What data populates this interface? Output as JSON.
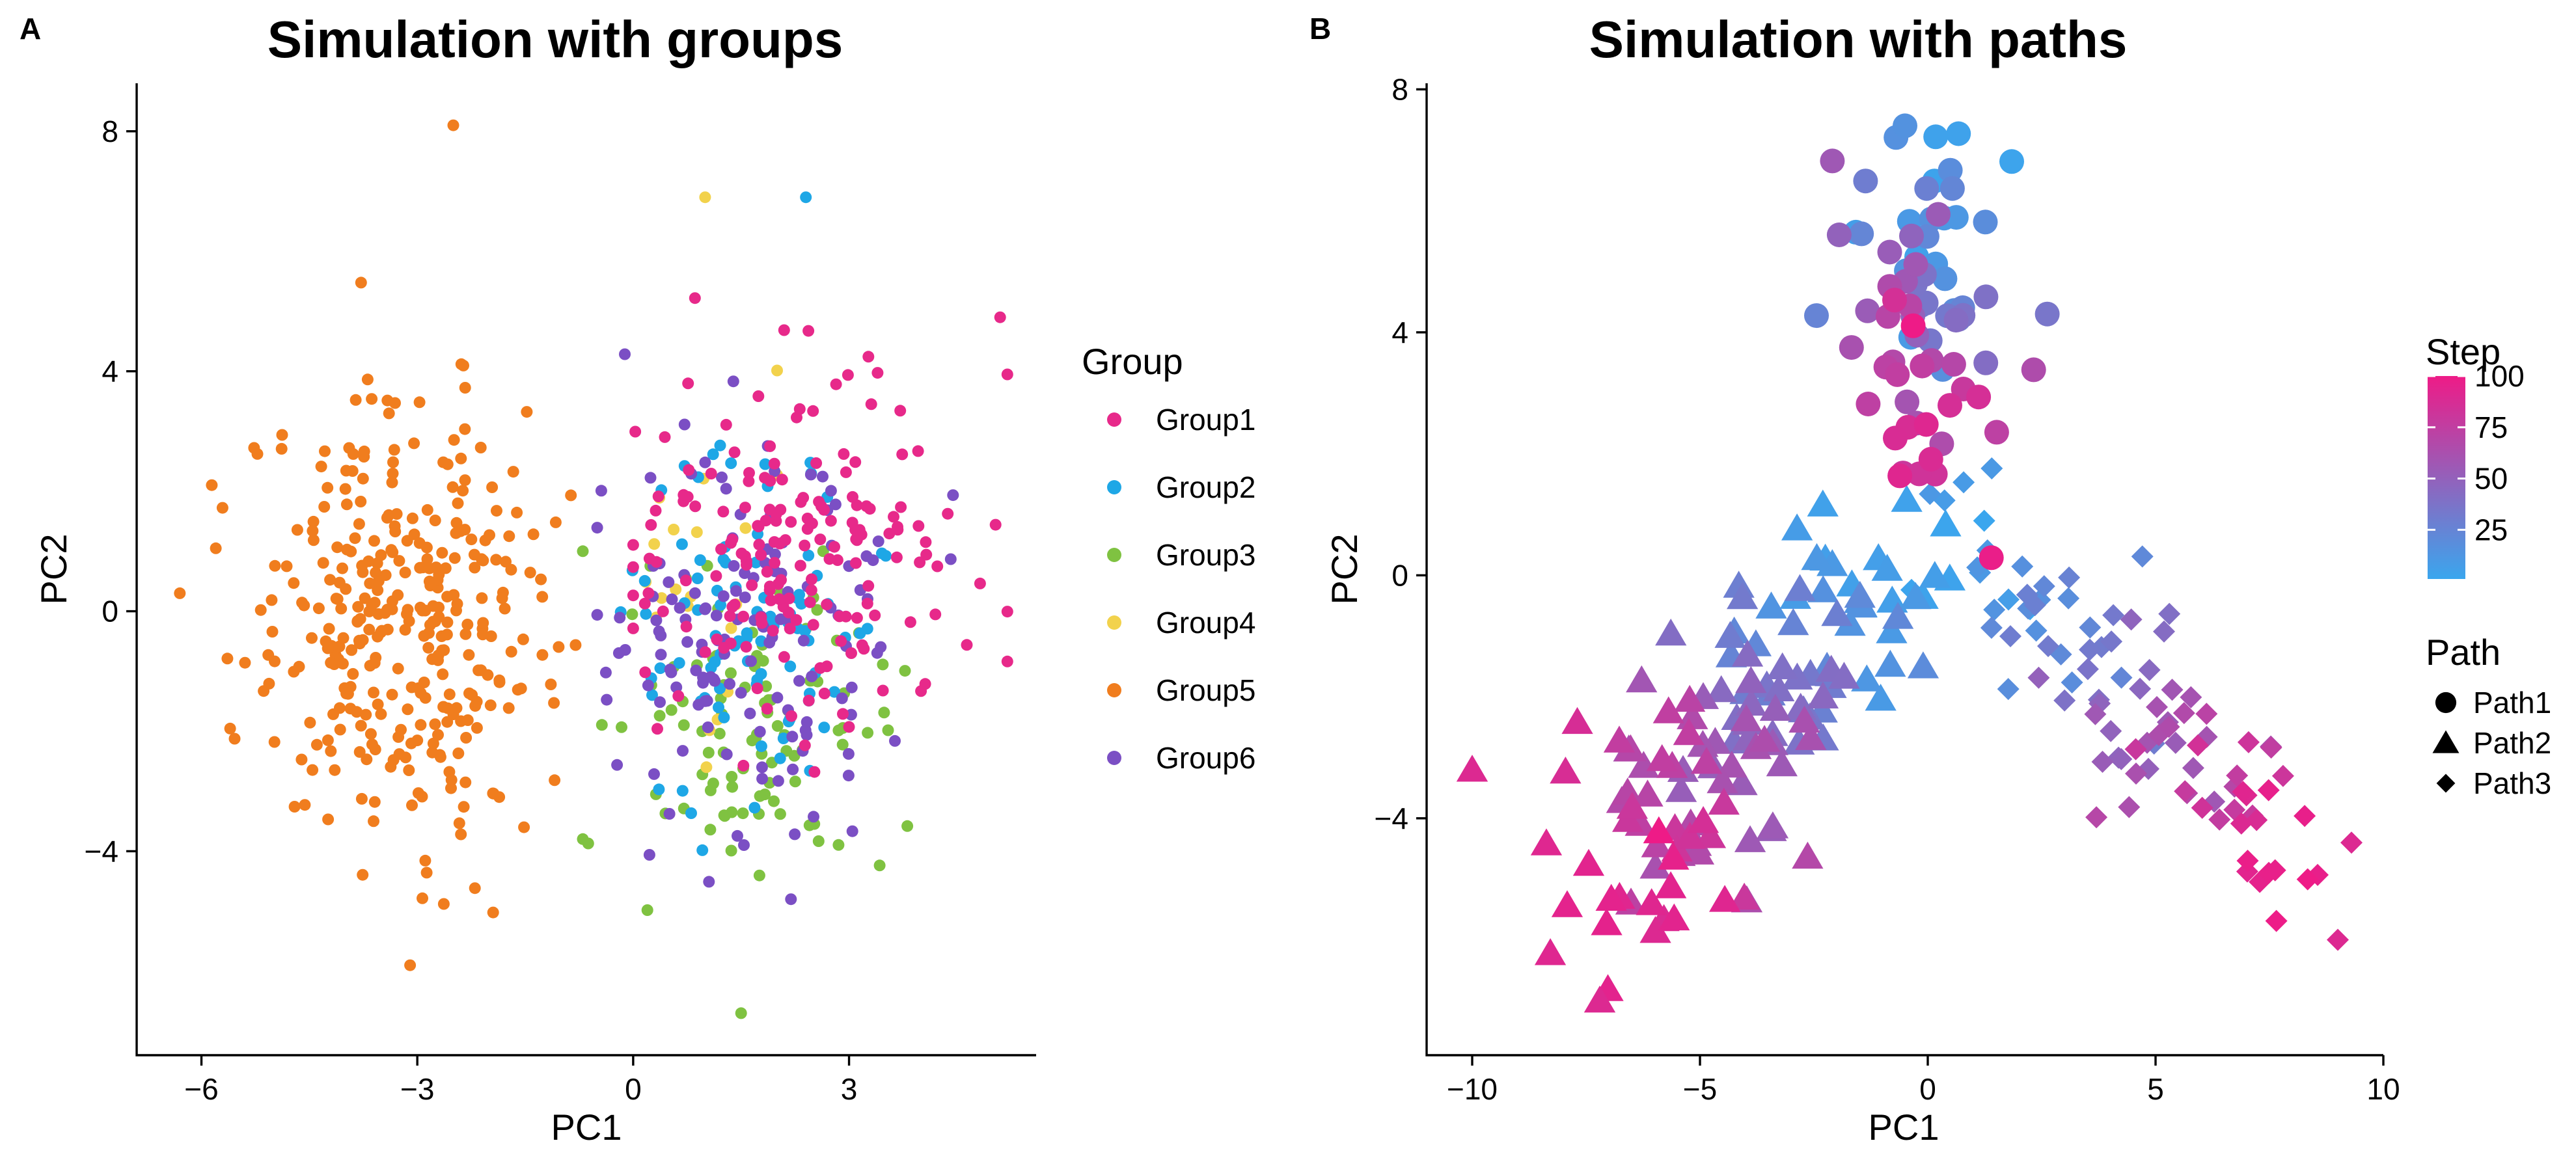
{
  "panels": {
    "a": {
      "tag": "A"
    },
    "b": {
      "tag": "B"
    }
  },
  "chart_data": [
    {
      "type": "scatter",
      "title": "Simulation with groups",
      "xlabel": "PC1",
      "ylabel": "PC2",
      "xlim": [
        -6.9,
        5.6
      ],
      "ylim": [
        -7.4,
        8.8
      ],
      "xticks": [
        -6,
        -3,
        0,
        3
      ],
      "xtick_labels": [
        "−6",
        "−3",
        "0",
        "3"
      ],
      "yticks": [
        -4,
        0,
        4,
        8
      ],
      "ytick_labels": [
        "−4",
        "0",
        "4",
        "8"
      ],
      "grid": false,
      "legend": {
        "title": "Group",
        "position": "right"
      },
      "series": [
        {
          "name": "Group1",
          "color": "#e7298a",
          "count": 180,
          "center": [
            2.1,
            0.9
          ],
          "spread": [
            1.1,
            1.5
          ],
          "range": [
            [
              0.0,
              5.2
            ],
            [
              -3.0,
              6.1
            ]
          ]
        },
        {
          "name": "Group2",
          "color": "#1ea7e6",
          "count": 90,
          "center": [
            1.6,
            -0.3
          ],
          "spread": [
            0.9,
            1.4
          ],
          "range": [
            [
              -0.6,
              4.6
            ],
            [
              -4.6,
              7.0
            ]
          ]
        },
        {
          "name": "Group3",
          "color": "#7fc241",
          "count": 100,
          "center": [
            1.5,
            -2.2
          ],
          "spread": [
            1.0,
            1.3
          ],
          "range": [
            [
              -0.7,
              4.5
            ],
            [
              -6.7,
              1.0
            ]
          ]
        },
        {
          "name": "Group4",
          "color": "#f2d24c",
          "count": 20,
          "center": [
            0.9,
            0.8
          ],
          "spread": [
            0.6,
            1.7
          ],
          "range": [
            [
              -1.0,
              2.0
            ],
            [
              -2.6,
              7.0
            ]
          ]
        },
        {
          "name": "Group5",
          "color": "#f07d1e",
          "count": 340,
          "center": [
            -3.2,
            -0.1
          ],
          "spread": [
            1.05,
            1.85
          ],
          "range": [
            [
              -6.3,
              -0.8
            ],
            [
              -5.9,
              8.1
            ]
          ]
        },
        {
          "name": "Group6",
          "color": "#7b4fc4",
          "count": 140,
          "center": [
            1.6,
            -0.6
          ],
          "spread": [
            1.2,
            1.6
          ],
          "range": [
            [
              -0.5,
              4.8
            ],
            [
              -4.8,
              5.4
            ]
          ]
        }
      ],
      "key_points": [
        {
          "x": -2.5,
          "y": 8.1,
          "series": "Group5"
        },
        {
          "x": -6.3,
          "y": 0.3,
          "series": "Group5"
        },
        {
          "x": -3.1,
          "y": -5.9,
          "series": "Group5"
        },
        {
          "x": 1.0,
          "y": 6.9,
          "series": "Group4"
        },
        {
          "x": 2.4,
          "y": 6.9,
          "series": "Group2"
        },
        {
          "x": 1.5,
          "y": -6.7,
          "series": "Group3"
        },
        {
          "x": 5.1,
          "y": 4.9,
          "series": "Group1"
        }
      ]
    },
    {
      "type": "scatter",
      "title": "Simulation with paths",
      "xlabel": "PC1",
      "ylabel": "PC2",
      "xlim": [
        -11.0,
        10.0
      ],
      "ylim": [
        -7.9,
        8.1
      ],
      "xticks": [
        -10,
        -5,
        0,
        5,
        10
      ],
      "xtick_labels": [
        "−10",
        "−5",
        "0",
        "5",
        "10"
      ],
      "yticks": [
        -4,
        0,
        4,
        8
      ],
      "ytick_labels": [
        "−4",
        "0",
        "4",
        "8"
      ],
      "grid": false,
      "color_scale": {
        "title": "Step",
        "low_color": "#3aa6ee",
        "high_color": "#ee1b87",
        "min": 1,
        "max": 100,
        "ticks": [
          25,
          50,
          75,
          100
        ],
        "tick_labels": [
          "25",
          "50",
          "75",
          "100"
        ]
      },
      "shape_legend": {
        "title": "Path",
        "entries": [
          {
            "name": "Path1",
            "shape": "circle"
          },
          {
            "name": "Path2",
            "shape": "triangle"
          },
          {
            "name": "Path3",
            "shape": "diamond"
          }
        ]
      },
      "paths": [
        {
          "name": "Path1",
          "shape": "circle",
          "count": 80,
          "start": [
            -0.3,
            5.8
          ],
          "end": [
            0.2,
            2.3
          ],
          "noise": [
            0.95,
            1.0
          ]
        },
        {
          "name": "Path2",
          "shape": "triangle",
          "count": 140,
          "start": [
            -0.8,
            0.2
          ],
          "end": [
            -7.2,
            -5.4
          ],
          "noise": [
            1.0,
            0.8
          ]
        },
        {
          "name": "Path3",
          "shape": "diamond",
          "count": 95,
          "start": [
            1.0,
            0.4
          ],
          "end": [
            7.8,
            -4.7
          ],
          "noise": [
            0.8,
            0.75
          ]
        }
      ],
      "key_points": [
        {
          "x": -0.5,
          "y": 7.4,
          "series": "Path1"
        },
        {
          "x": -10.0,
          "y": -3.2,
          "series": "Path2"
        },
        {
          "x": -7.2,
          "y": -7.0,
          "series": "Path2"
        },
        {
          "x": 9.0,
          "y": -6.0,
          "series": "Path3"
        },
        {
          "x": 9.3,
          "y": -4.4,
          "series": "Path3"
        }
      ]
    }
  ]
}
